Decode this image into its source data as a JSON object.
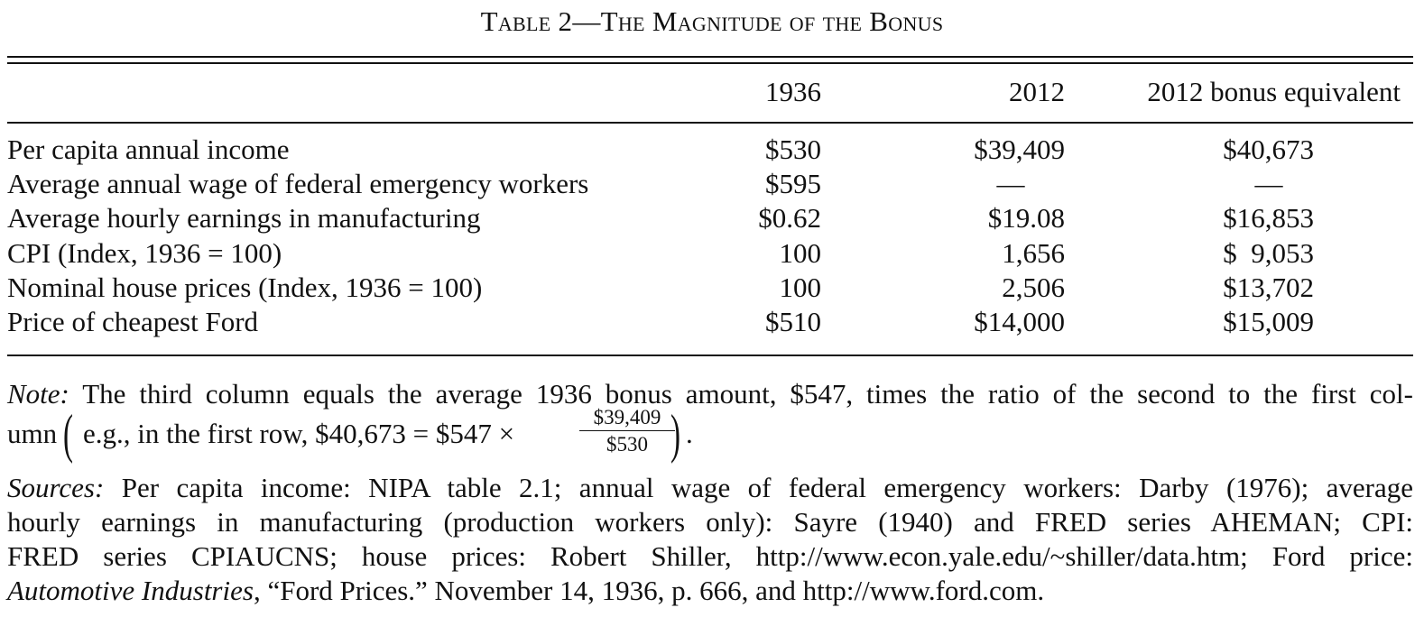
{
  "table": {
    "title": "Table 2—The Magnitude of the Bonus",
    "columns": [
      "1936",
      "2012",
      "2012 bonus equivalent"
    ],
    "rows": [
      {
        "label": "Per capita annual income",
        "v1936": "$530",
        "v2012": "$39,409",
        "bonus": "$40,673"
      },
      {
        "label": "Average annual wage of federal emergency workers",
        "v1936": "$595",
        "v2012": "—",
        "bonus": "—"
      },
      {
        "label": "Average hourly earnings in manufacturing",
        "v1936": "$0.62",
        "v2012": "$19.08",
        "bonus": "$16,853"
      },
      {
        "label": "CPI (Index, 1936 = 100)",
        "v1936": "100",
        "v2012": "1,656",
        "bonus": "$  9,053"
      },
      {
        "label": "Nominal house prices (Index, 1936 = 100)",
        "v1936": "100",
        "v2012": "2,506",
        "bonus": "$13,702"
      },
      {
        "label": "Price of cheapest Ford",
        "v1936": "$510",
        "v2012": "$14,000",
        "bonus": "$15,009"
      }
    ]
  },
  "note": {
    "label": "Note:",
    "line1": "The third column equals the average 1936 bonus amount, $547, times the ratio of the second to the first col-",
    "line2_start": "umn",
    "line2_text": "e.g., in the first row, $40,673 = $547 ×",
    "fraction_numerator": "$39,409",
    "fraction_denominator": "$530",
    "line2_end": "."
  },
  "sources": {
    "label": "Sources:",
    "line1": "Per capita income: NIPA table 2.1; annual wage of federal emergency workers: Darby (1976); average",
    "line2": "hourly earnings in manufacturing (production workers only): Sayre (1940) and FRED series AHEMAN; CPI:",
    "line3": "FRED series CPIAUCNS; house prices: Robert Shiller, http://www.econ.yale.edu/~shiller/data.htm; Ford price:",
    "line4_italic": "Automotive Industries",
    "line4_rest": ", “Ford Prices.” November 14, 1936, p. 666, and http://www.ford.com."
  }
}
